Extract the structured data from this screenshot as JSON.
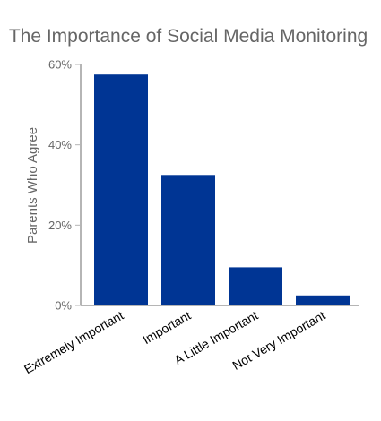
{
  "chart_data": {
    "type": "bar",
    "title": "The Importance of Social Media Monitoring",
    "ylabel": "Parents Who Agree",
    "xlabel": "",
    "categories": [
      "Extremely Important",
      "Important",
      "A Little Important",
      "Not Very Important"
    ],
    "values": [
      57.5,
      32.5,
      9.5,
      2.5
    ],
    "unit": "%",
    "ylim": [
      0,
      60
    ],
    "yticks": [
      0,
      20,
      40,
      60
    ],
    "ytick_labels": [
      "0%",
      "20%",
      "40%",
      "60%"
    ],
    "grid": false,
    "bar_color": "#003594",
    "axis_color": "#b5b5b5",
    "text_color": "#666666"
  }
}
